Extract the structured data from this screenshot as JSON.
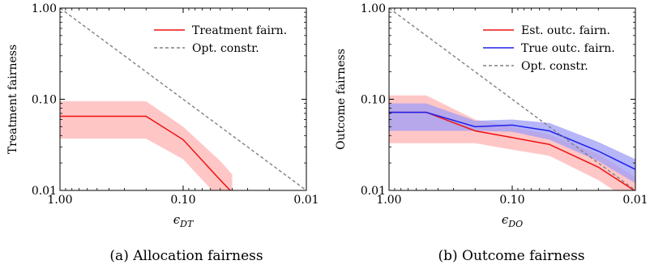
{
  "chart_data": [
    {
      "type": "line",
      "panel": "a",
      "caption": "(a) Allocation fairness",
      "ylabel": "Treatment fairness",
      "xlabel": "ϵ",
      "xlabel_sub": "DT",
      "x_scale": "log",
      "x_reversed": true,
      "y_scale": "log",
      "xlim": [
        1.0,
        0.01
      ],
      "ylim": [
        0.01,
        1.0
      ],
      "x_ticks": [
        1.0,
        0.1,
        0.01
      ],
      "x_tick_labels": [
        "1.00",
        "0.10",
        "0.01"
      ],
      "y_ticks": [
        0.01,
        0.1,
        1.0
      ],
      "y_tick_labels": [
        "0.01",
        "0.10",
        "1.00"
      ],
      "legend_position": "top-right",
      "series": [
        {
          "name": "Treatment fairn.",
          "color": "#ee1111",
          "band_color": "#ffb3b3",
          "x": [
            1.0,
            0.2,
            0.1,
            0.05,
            0.04
          ],
          "y": [
            0.065,
            0.065,
            0.036,
            0.013,
            0.0095
          ],
          "lower": [
            0.037,
            0.037,
            0.022,
            0.008,
            0.006
          ],
          "upper": [
            0.095,
            0.095,
            0.05,
            0.021,
            0.015
          ]
        },
        {
          "name": "Opt. constr.",
          "color": "#808080",
          "dashed": true,
          "x": [
            1.0,
            0.01
          ],
          "y": [
            1.0,
            0.01
          ]
        }
      ]
    },
    {
      "type": "line",
      "panel": "b",
      "caption": "(b) Outcome fairness",
      "ylabel": "Outcome fairness",
      "xlabel": "ϵ",
      "xlabel_sub": "DO",
      "x_scale": "log",
      "x_reversed": true,
      "y_scale": "log",
      "xlim": [
        1.0,
        0.01
      ],
      "ylim": [
        0.01,
        1.0
      ],
      "x_ticks": [
        1.0,
        0.1,
        0.01
      ],
      "x_tick_labels": [
        "1.00",
        "0.10",
        "0.01"
      ],
      "y_ticks": [
        0.01,
        0.1,
        1.0
      ],
      "y_tick_labels": [
        "0.01",
        "0.10",
        "1.00"
      ],
      "legend_position": "top-right",
      "series": [
        {
          "name": "Est. outc. fairn.",
          "color": "#ee1111",
          "band_color": "#ffb3b3",
          "x": [
            1.0,
            0.5,
            0.2,
            0.1,
            0.05,
            0.02,
            0.01
          ],
          "y": [
            0.072,
            0.072,
            0.045,
            0.038,
            0.032,
            0.018,
            0.0098
          ],
          "lower": [
            0.033,
            0.033,
            0.033,
            0.028,
            0.024,
            0.013,
            0.007
          ],
          "upper": [
            0.11,
            0.11,
            0.06,
            0.05,
            0.041,
            0.025,
            0.014
          ]
        },
        {
          "name": "True outc. fairn.",
          "color": "#2020ee",
          "band_color": "#9d9df5",
          "x": [
            1.0,
            0.5,
            0.2,
            0.1,
            0.05,
            0.02,
            0.01
          ],
          "y": [
            0.072,
            0.072,
            0.05,
            0.052,
            0.045,
            0.027,
            0.017
          ],
          "lower": [
            0.045,
            0.045,
            0.045,
            0.044,
            0.036,
            0.021,
            0.012
          ],
          "upper": [
            0.09,
            0.09,
            0.058,
            0.06,
            0.055,
            0.034,
            0.022
          ]
        },
        {
          "name": "Opt. constr.",
          "color": "#808080",
          "dashed": true,
          "x": [
            1.0,
            0.01
          ],
          "y": [
            1.0,
            0.01
          ]
        }
      ]
    }
  ]
}
